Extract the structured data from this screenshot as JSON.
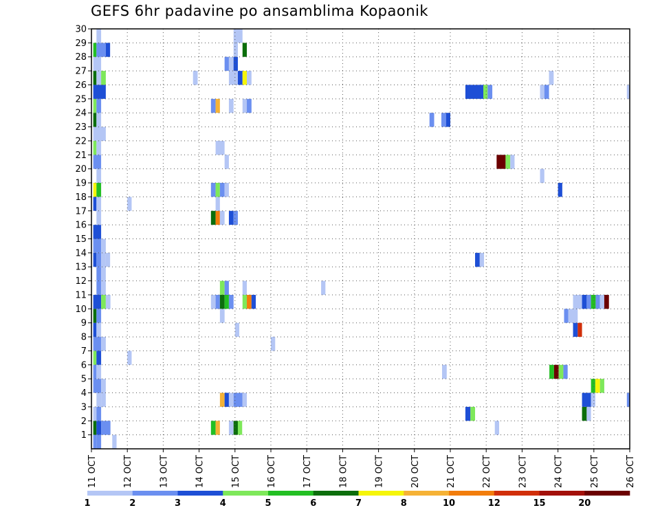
{
  "chart_data": {
    "type": "heatmap",
    "title": "GEFS 6hr padavine po ansamblima Kopaonik",
    "x_labels": [
      "11 OCT",
      "12 OCT",
      "13 OCT",
      "14 OCT",
      "15 OCT",
      "16 OCT",
      "17 OCT",
      "18 OCT",
      "19 OCT",
      "20 OCT",
      "21 OCT",
      "22 OCT",
      "23 OCT",
      "24 OCT",
      "25 OCT",
      "26 OCT"
    ],
    "x_range": [
      0,
      15
    ],
    "y_labels": [
      1,
      2,
      3,
      4,
      5,
      6,
      7,
      8,
      9,
      10,
      11,
      12,
      13,
      14,
      15,
      16,
      17,
      18,
      19,
      20,
      21,
      22,
      23,
      24,
      25,
      26,
      27,
      28,
      29,
      30
    ],
    "y_range": [
      0,
      30
    ],
    "grid": true,
    "legend_placement": "bottom",
    "legend_labels": [
      "1",
      "2",
      "3",
      "4",
      "5",
      "6",
      "7",
      "8",
      "10",
      "12",
      "15",
      "20"
    ],
    "colors": [
      "#b4c6f5",
      "#6b8ff0",
      "#1e4fd6",
      "#7ee85a",
      "#23bf23",
      "#0c6e0c",
      "#f5f50a",
      "#f5b236",
      "#f27d0c",
      "#d12f0a",
      "#a3100a",
      "#6b0000"
    ],
    "cells": [
      {
        "m": 0,
        "t": [
          0.05,
          0.14
        ],
        "c": 1
      },
      {
        "m": 0,
        "t": [
          0.14,
          0.27
        ],
        "c": 1
      },
      {
        "m": 0,
        "t": [
          0.58,
          0.7
        ],
        "c": 0
      },
      {
        "m": 1,
        "t": [
          0.05,
          0.14
        ],
        "c": 5
      },
      {
        "m": 1,
        "t": [
          0.14,
          0.27
        ],
        "c": 2
      },
      {
        "m": 1,
        "t": [
          0.27,
          0.53
        ],
        "c": 1
      },
      {
        "m": 1,
        "t": [
          3.33,
          3.46
        ],
        "c": 4
      },
      {
        "m": 1,
        "t": [
          3.46,
          3.58
        ],
        "c": 7
      },
      {
        "m": 1,
        "t": [
          3.83,
          3.96
        ],
        "c": 0
      },
      {
        "m": 1,
        "t": [
          3.96,
          4.08
        ],
        "c": 5
      },
      {
        "m": 1,
        "t": [
          4.08,
          4.2
        ],
        "c": 3
      },
      {
        "m": 1,
        "t": [
          11.24,
          11.36
        ],
        "c": 0
      },
      {
        "m": 2,
        "t": [
          0.05,
          0.14
        ],
        "c": 0
      },
      {
        "m": 2,
        "t": [
          0.14,
          0.27
        ],
        "c": 1
      },
      {
        "m": 2,
        "t": [
          10.42,
          10.56
        ],
        "c": 2
      },
      {
        "m": 2,
        "t": [
          10.56,
          10.69
        ],
        "c": 3
      },
      {
        "m": 2,
        "t": [
          13.67,
          13.8
        ],
        "c": 5
      },
      {
        "m": 2,
        "t": [
          13.8,
          13.92
        ],
        "c": 0
      },
      {
        "m": 3,
        "t": [
          0.14,
          0.27
        ],
        "c": 0
      },
      {
        "m": 3,
        "t": [
          0.27,
          0.4
        ],
        "c": 0
      },
      {
        "m": 3,
        "t": [
          3.58,
          3.71
        ],
        "c": 7
      },
      {
        "m": 3,
        "t": [
          3.71,
          3.83
        ],
        "c": 2
      },
      {
        "m": 3,
        "t": [
          3.83,
          3.96
        ],
        "c": 0
      },
      {
        "m": 3,
        "t": [
          3.96,
          4.21
        ],
        "c": 1
      },
      {
        "m": 3,
        "t": [
          4.21,
          4.33
        ],
        "c": 0
      },
      {
        "m": 3,
        "t": [
          13.67,
          13.92
        ],
        "c": 2
      },
      {
        "m": 3,
        "t": [
          13.92,
          14.04
        ],
        "c": 0
      },
      {
        "m": 3,
        "t": [
          14.92,
          15.0
        ],
        "c": 1
      },
      {
        "m": 4,
        "t": [
          0.05,
          0.27
        ],
        "c": 1
      },
      {
        "m": 4,
        "t": [
          0.27,
          0.4
        ],
        "c": 0
      },
      {
        "m": 4,
        "t": [
          13.92,
          14.04
        ],
        "c": 4
      },
      {
        "m": 4,
        "t": [
          14.04,
          14.17
        ],
        "c": 6
      },
      {
        "m": 4,
        "t": [
          14.17,
          14.29
        ],
        "c": 3
      },
      {
        "m": 5,
        "t": [
          0.05,
          0.14
        ],
        "c": 1
      },
      {
        "m": 5,
        "t": [
          0.14,
          0.27
        ],
        "c": 0
      },
      {
        "m": 5,
        "t": [
          9.77,
          9.9
        ],
        "c": 0
      },
      {
        "m": 5,
        "t": [
          12.76,
          12.89
        ],
        "c": 4
      },
      {
        "m": 5,
        "t": [
          12.89,
          13.02
        ],
        "c": 11
      },
      {
        "m": 5,
        "t": [
          13.02,
          13.15
        ],
        "c": 3
      },
      {
        "m": 5,
        "t": [
          13.15,
          13.27
        ],
        "c": 1
      },
      {
        "m": 6,
        "t": [
          0.05,
          0.14
        ],
        "c": 3
      },
      {
        "m": 6,
        "t": [
          0.14,
          0.27
        ],
        "c": 2
      },
      {
        "m": 6,
        "t": [
          1.0,
          1.12
        ],
        "c": 0
      },
      {
        "m": 7,
        "t": [
          0.05,
          0.27
        ],
        "c": 1
      },
      {
        "m": 7,
        "t": [
          0.27,
          0.4
        ],
        "c": 0
      },
      {
        "m": 7,
        "t": [
          5.0,
          5.12
        ],
        "c": 0
      },
      {
        "m": 8,
        "t": [
          0.05,
          0.14
        ],
        "c": 2
      },
      {
        "m": 8,
        "t": [
          0.14,
          0.27
        ],
        "c": 0
      },
      {
        "m": 8,
        "t": [
          4.0,
          4.12
        ],
        "c": 0
      },
      {
        "m": 8,
        "t": [
          13.42,
          13.55
        ],
        "c": 2
      },
      {
        "m": 8,
        "t": [
          13.55,
          13.67
        ],
        "c": 9
      },
      {
        "m": 9,
        "t": [
          0.05,
          0.14
        ],
        "c": 5
      },
      {
        "m": 9,
        "t": [
          0.14,
          0.27
        ],
        "c": 1
      },
      {
        "m": 9,
        "t": [
          3.58,
          3.71
        ],
        "c": 0
      },
      {
        "m": 9,
        "t": [
          13.17,
          13.29
        ],
        "c": 1
      },
      {
        "m": 9,
        "t": [
          13.29,
          13.42
        ],
        "c": 0
      },
      {
        "m": 9,
        "t": [
          13.42,
          13.55
        ],
        "c": 0
      },
      {
        "m": 10,
        "t": [
          0.05,
          0.27
        ],
        "c": 2
      },
      {
        "m": 10,
        "t": [
          0.27,
          0.4
        ],
        "c": 3
      },
      {
        "m": 10,
        "t": [
          0.4,
          0.53
        ],
        "c": 0
      },
      {
        "m": 10,
        "t": [
          3.33,
          3.46
        ],
        "c": 0
      },
      {
        "m": 10,
        "t": [
          3.46,
          3.58
        ],
        "c": 1
      },
      {
        "m": 10,
        "t": [
          3.58,
          3.71
        ],
        "c": 5
      },
      {
        "m": 10,
        "t": [
          3.71,
          3.83
        ],
        "c": 4
      },
      {
        "m": 10,
        "t": [
          3.83,
          3.96
        ],
        "c": 1
      },
      {
        "m": 10,
        "t": [
          4.21,
          4.33
        ],
        "c": 3
      },
      {
        "m": 10,
        "t": [
          4.33,
          4.46
        ],
        "c": 8
      },
      {
        "m": 10,
        "t": [
          4.46,
          4.58
        ],
        "c": 2
      },
      {
        "m": 10,
        "t": [
          13.42,
          13.67
        ],
        "c": 0
      },
      {
        "m": 10,
        "t": [
          13.67,
          13.8
        ],
        "c": 2
      },
      {
        "m": 10,
        "t": [
          13.8,
          13.92
        ],
        "c": 1
      },
      {
        "m": 10,
        "t": [
          13.92,
          14.05
        ],
        "c": 4
      },
      {
        "m": 10,
        "t": [
          14.05,
          14.17
        ],
        "c": 1
      },
      {
        "m": 10,
        "t": [
          14.17,
          14.29
        ],
        "c": 0
      },
      {
        "m": 10,
        "t": [
          14.29,
          14.42
        ],
        "c": 11
      },
      {
        "m": 11,
        "t": [
          0.14,
          0.27
        ],
        "c": 1
      },
      {
        "m": 11,
        "t": [
          0.27,
          0.4
        ],
        "c": 0
      },
      {
        "m": 11,
        "t": [
          3.58,
          3.71
        ],
        "c": 3
      },
      {
        "m": 11,
        "t": [
          3.71,
          3.83
        ],
        "c": 1
      },
      {
        "m": 11,
        "t": [
          4.21,
          4.33
        ],
        "c": 0
      },
      {
        "m": 11,
        "t": [
          6.4,
          6.52
        ],
        "c": 0
      },
      {
        "m": 12,
        "t": [
          0.14,
          0.27
        ],
        "c": 1
      },
      {
        "m": 12,
        "t": [
          0.27,
          0.4
        ],
        "c": 0
      },
      {
        "m": 13,
        "t": [
          0.05,
          0.14
        ],
        "c": 2
      },
      {
        "m": 13,
        "t": [
          0.14,
          0.27
        ],
        "c": 1
      },
      {
        "m": 13,
        "t": [
          0.27,
          0.4
        ],
        "c": 0
      },
      {
        "m": 13,
        "t": [
          0.4,
          0.52
        ],
        "c": 0
      },
      {
        "m": 13,
        "t": [
          10.69,
          10.82
        ],
        "c": 2
      },
      {
        "m": 13,
        "t": [
          10.82,
          10.94
        ],
        "c": 0
      },
      {
        "m": 14,
        "t": [
          0.05,
          0.27
        ],
        "c": 1
      },
      {
        "m": 14,
        "t": [
          0.27,
          0.4
        ],
        "c": 0
      },
      {
        "m": 15,
        "t": [
          0.05,
          0.27
        ],
        "c": 2
      },
      {
        "m": 16,
        "t": [
          0.14,
          0.27
        ],
        "c": 0
      },
      {
        "m": 16,
        "t": [
          3.33,
          3.46
        ],
        "c": 5
      },
      {
        "m": 16,
        "t": [
          3.46,
          3.58
        ],
        "c": 8
      },
      {
        "m": 16,
        "t": [
          3.58,
          3.71
        ],
        "c": 0
      },
      {
        "m": 16,
        "t": [
          3.83,
          3.96
        ],
        "c": 2
      },
      {
        "m": 16,
        "t": [
          3.96,
          4.08
        ],
        "c": 1
      },
      {
        "m": 17,
        "t": [
          0.05,
          0.14
        ],
        "c": 2
      },
      {
        "m": 17,
        "t": [
          0.14,
          0.27
        ],
        "c": 0
      },
      {
        "m": 17,
        "t": [
          1.0,
          1.12
        ],
        "c": 0
      },
      {
        "m": 17,
        "t": [
          3.46,
          3.58
        ],
        "c": 0
      },
      {
        "m": 18,
        "t": [
          0.05,
          0.14
        ],
        "c": 6
      },
      {
        "m": 18,
        "t": [
          0.14,
          0.27
        ],
        "c": 4
      },
      {
        "m": 18,
        "t": [
          3.33,
          3.46
        ],
        "c": 1
      },
      {
        "m": 18,
        "t": [
          3.46,
          3.58
        ],
        "c": 3
      },
      {
        "m": 18,
        "t": [
          3.58,
          3.71
        ],
        "c": 1
      },
      {
        "m": 18,
        "t": [
          3.71,
          3.83
        ],
        "c": 0
      },
      {
        "m": 18,
        "t": [
          13.0,
          13.12
        ],
        "c": 2
      },
      {
        "m": 19,
        "t": [
          0.14,
          0.27
        ],
        "c": 0
      },
      {
        "m": 19,
        "t": [
          12.5,
          12.62
        ],
        "c": 0
      },
      {
        "m": 20,
        "t": [
          0.05,
          0.27
        ],
        "c": 1
      },
      {
        "m": 20,
        "t": [
          3.71,
          3.83
        ],
        "c": 0
      },
      {
        "m": 20,
        "t": [
          11.29,
          11.54
        ],
        "c": 11
      },
      {
        "m": 20,
        "t": [
          11.54,
          11.67
        ],
        "c": 3
      },
      {
        "m": 20,
        "t": [
          11.67,
          11.79
        ],
        "c": 0
      },
      {
        "m": 21,
        "t": [
          0.05,
          0.14
        ],
        "c": 3
      },
      {
        "m": 21,
        "t": [
          0.14,
          0.27
        ],
        "c": 0
      },
      {
        "m": 21,
        "t": [
          3.46,
          3.71
        ],
        "c": 0
      },
      {
        "m": 22,
        "t": [
          0.05,
          0.4
        ],
        "c": 0
      },
      {
        "m": 23,
        "t": [
          0.05,
          0.14
        ],
        "c": 5
      },
      {
        "m": 23,
        "t": [
          0.14,
          0.27
        ],
        "c": 0
      },
      {
        "m": 23,
        "t": [
          9.42,
          9.55
        ],
        "c": 1
      },
      {
        "m": 23,
        "t": [
          9.75,
          9.88
        ],
        "c": 1
      },
      {
        "m": 23,
        "t": [
          9.88,
          10.0
        ],
        "c": 2
      },
      {
        "m": 24,
        "t": [
          0.05,
          0.14
        ],
        "c": 3
      },
      {
        "m": 24,
        "t": [
          0.14,
          0.27
        ],
        "c": 1
      },
      {
        "m": 24,
        "t": [
          3.33,
          3.46
        ],
        "c": 1
      },
      {
        "m": 24,
        "t": [
          3.46,
          3.58
        ],
        "c": 7
      },
      {
        "m": 24,
        "t": [
          3.83,
          3.96
        ],
        "c": 0
      },
      {
        "m": 24,
        "t": [
          4.21,
          4.33
        ],
        "c": 0
      },
      {
        "m": 24,
        "t": [
          4.33,
          4.46
        ],
        "c": 1
      },
      {
        "m": 25,
        "t": [
          0.05,
          0.4
        ],
        "c": 2
      },
      {
        "m": 25,
        "t": [
          10.42,
          10.92
        ],
        "c": 2
      },
      {
        "m": 25,
        "t": [
          10.92,
          11.04
        ],
        "c": 3
      },
      {
        "m": 25,
        "t": [
          11.04,
          11.17
        ],
        "c": 1
      },
      {
        "m": 25,
        "t": [
          12.5,
          12.62
        ],
        "c": 0
      },
      {
        "m": 25,
        "t": [
          12.62,
          12.75
        ],
        "c": 1
      },
      {
        "m": 25,
        "t": [
          14.92,
          15.0
        ],
        "c": 0
      },
      {
        "m": 26,
        "t": [
          0.05,
          0.14
        ],
        "c": 5
      },
      {
        "m": 26,
        "t": [
          0.14,
          0.27
        ],
        "c": 0
      },
      {
        "m": 26,
        "t": [
          0.27,
          0.4
        ],
        "c": 3
      },
      {
        "m": 26,
        "t": [
          2.83,
          2.96
        ],
        "c": 0
      },
      {
        "m": 26,
        "t": [
          3.83,
          4.08
        ],
        "c": 0
      },
      {
        "m": 26,
        "t": [
          4.08,
          4.21
        ],
        "c": 2
      },
      {
        "m": 26,
        "t": [
          4.21,
          4.33
        ],
        "c": 6
      },
      {
        "m": 26,
        "t": [
          4.33,
          4.46
        ],
        "c": 0
      },
      {
        "m": 26,
        "t": [
          12.75,
          12.88
        ],
        "c": 0
      },
      {
        "m": 27,
        "t": [
          0.05,
          0.27
        ],
        "c": 0
      },
      {
        "m": 27,
        "t": [
          3.71,
          3.83
        ],
        "c": 1
      },
      {
        "m": 27,
        "t": [
          3.83,
          3.96
        ],
        "c": 0
      },
      {
        "m": 27,
        "t": [
          3.96,
          4.08
        ],
        "c": 2
      },
      {
        "m": 28,
        "t": [
          0.05,
          0.14
        ],
        "c": 4
      },
      {
        "m": 28,
        "t": [
          0.14,
          0.4
        ],
        "c": 1
      },
      {
        "m": 28,
        "t": [
          0.4,
          0.52
        ],
        "c": 2
      },
      {
        "m": 28,
        "t": [
          3.96,
          4.08
        ],
        "c": 0
      },
      {
        "m": 28,
        "t": [
          4.21,
          4.33
        ],
        "c": 5
      },
      {
        "m": 29,
        "t": [
          0.14,
          0.27
        ],
        "c": 0
      },
      {
        "m": 29,
        "t": [
          3.96,
          4.21
        ],
        "c": 0
      }
    ]
  }
}
